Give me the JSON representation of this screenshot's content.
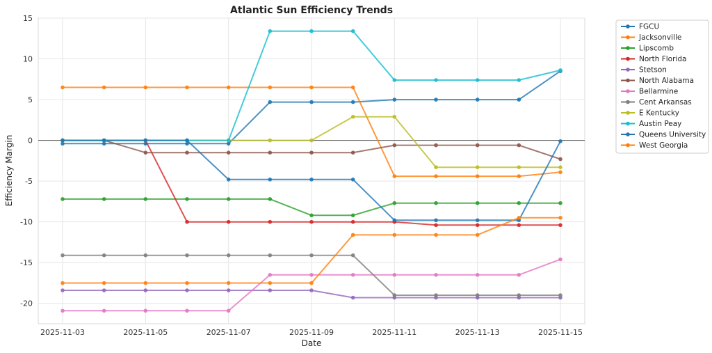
{
  "chart_data": {
    "type": "line",
    "title": "Atlantic Sun Efficiency Trends",
    "xlabel": "Date",
    "ylabel": "Efficiency Margin",
    "ylim": [
      -22.5,
      15
    ],
    "yticks": [
      -20,
      -15,
      -10,
      -5,
      0,
      5,
      10,
      15
    ],
    "xticks": [
      "2025-11-03",
      "2025-11-05",
      "2025-11-07",
      "2025-11-09",
      "2025-11-11",
      "2025-11-13",
      "2025-11-15"
    ],
    "x": [
      "2025-11-03",
      "2025-11-04",
      "2025-11-05",
      "2025-11-06",
      "2025-11-07",
      "2025-11-08",
      "2025-11-09",
      "2025-11-10",
      "2025-11-11",
      "2025-11-12",
      "2025-11-13",
      "2025-11-14",
      "2025-11-15"
    ],
    "grid": true,
    "reference_line": 0,
    "legend_position": "outside-top-right",
    "series": [
      {
        "name": "FGCU",
        "color": "#1f77b4",
        "values": [
          -0.4,
          -0.4,
          -0.4,
          -0.4,
          -0.4,
          4.7,
          4.7,
          4.7,
          5.0,
          5.0,
          5.0,
          5.0,
          8.5
        ]
      },
      {
        "name": "Jacksonville",
        "color": "#ff7f0e",
        "values": [
          6.5,
          6.5,
          6.5,
          6.5,
          6.5,
          6.5,
          6.5,
          6.5,
          -4.4,
          -4.4,
          -4.4,
          -4.4,
          -3.9
        ]
      },
      {
        "name": "Lipscomb",
        "color": "#2ca02c",
        "values": [
          -7.2,
          -7.2,
          -7.2,
          -7.2,
          -7.2,
          -7.2,
          -9.2,
          -9.2,
          -7.7,
          -7.7,
          -7.7,
          -7.7,
          -7.7
        ]
      },
      {
        "name": "North Florida",
        "color": "#d62728",
        "values": [
          0.0,
          0.0,
          0.0,
          -10.0,
          -10.0,
          -10.0,
          -10.0,
          -10.0,
          -10.0,
          -10.4,
          -10.4,
          -10.4,
          -10.4
        ]
      },
      {
        "name": "Stetson",
        "color": "#9467bd",
        "values": [
          -18.4,
          -18.4,
          -18.4,
          -18.4,
          -18.4,
          -18.4,
          -18.4,
          -19.3,
          -19.3,
          -19.3,
          -19.3,
          -19.3,
          -19.3
        ]
      },
      {
        "name": "North Alabama",
        "color": "#8c564b",
        "values": [
          0.0,
          0.0,
          -1.5,
          -1.5,
          -1.5,
          -1.5,
          -1.5,
          -1.5,
          -0.6,
          -0.6,
          -0.6,
          -0.6,
          -2.3
        ]
      },
      {
        "name": "Bellarmine",
        "color": "#e377c2",
        "values": [
          -20.9,
          -20.9,
          -20.9,
          -20.9,
          -20.9,
          -16.5,
          -16.5,
          -16.5,
          -16.5,
          -16.5,
          -16.5,
          -16.5,
          -14.6
        ]
      },
      {
        "name": "Cent Arkansas",
        "color": "#7f7f7f",
        "values": [
          -14.1,
          -14.1,
          -14.1,
          -14.1,
          -14.1,
          -14.1,
          -14.1,
          -14.1,
          -19.0,
          -19.0,
          -19.0,
          -19.0,
          -19.0
        ]
      },
      {
        "name": "E Kentucky",
        "color": "#bcbd22",
        "values": [
          0.0,
          0.0,
          0.0,
          0.0,
          0.0,
          0.0,
          0.0,
          2.9,
          2.9,
          -3.3,
          -3.3,
          -3.3,
          -3.3
        ]
      },
      {
        "name": "Austin Peay",
        "color": "#17becf",
        "values": [
          0.0,
          0.0,
          0.0,
          0.0,
          0.0,
          13.4,
          13.4,
          13.4,
          7.4,
          7.4,
          7.4,
          7.4,
          8.6
        ]
      },
      {
        "name": "Queens University",
        "color": "#1f77b4",
        "values": [
          0.0,
          0.0,
          0.0,
          0.0,
          -4.8,
          -4.8,
          -4.8,
          -4.8,
          -9.8,
          -9.8,
          -9.8,
          -9.8,
          -0.1
        ]
      },
      {
        "name": "West Georgia",
        "color": "#ff7f0e",
        "values": [
          -17.5,
          -17.5,
          -17.5,
          -17.5,
          -17.5,
          -17.5,
          -17.5,
          -11.6,
          -11.6,
          -11.6,
          -11.6,
          -9.5,
          -9.5
        ]
      }
    ]
  }
}
